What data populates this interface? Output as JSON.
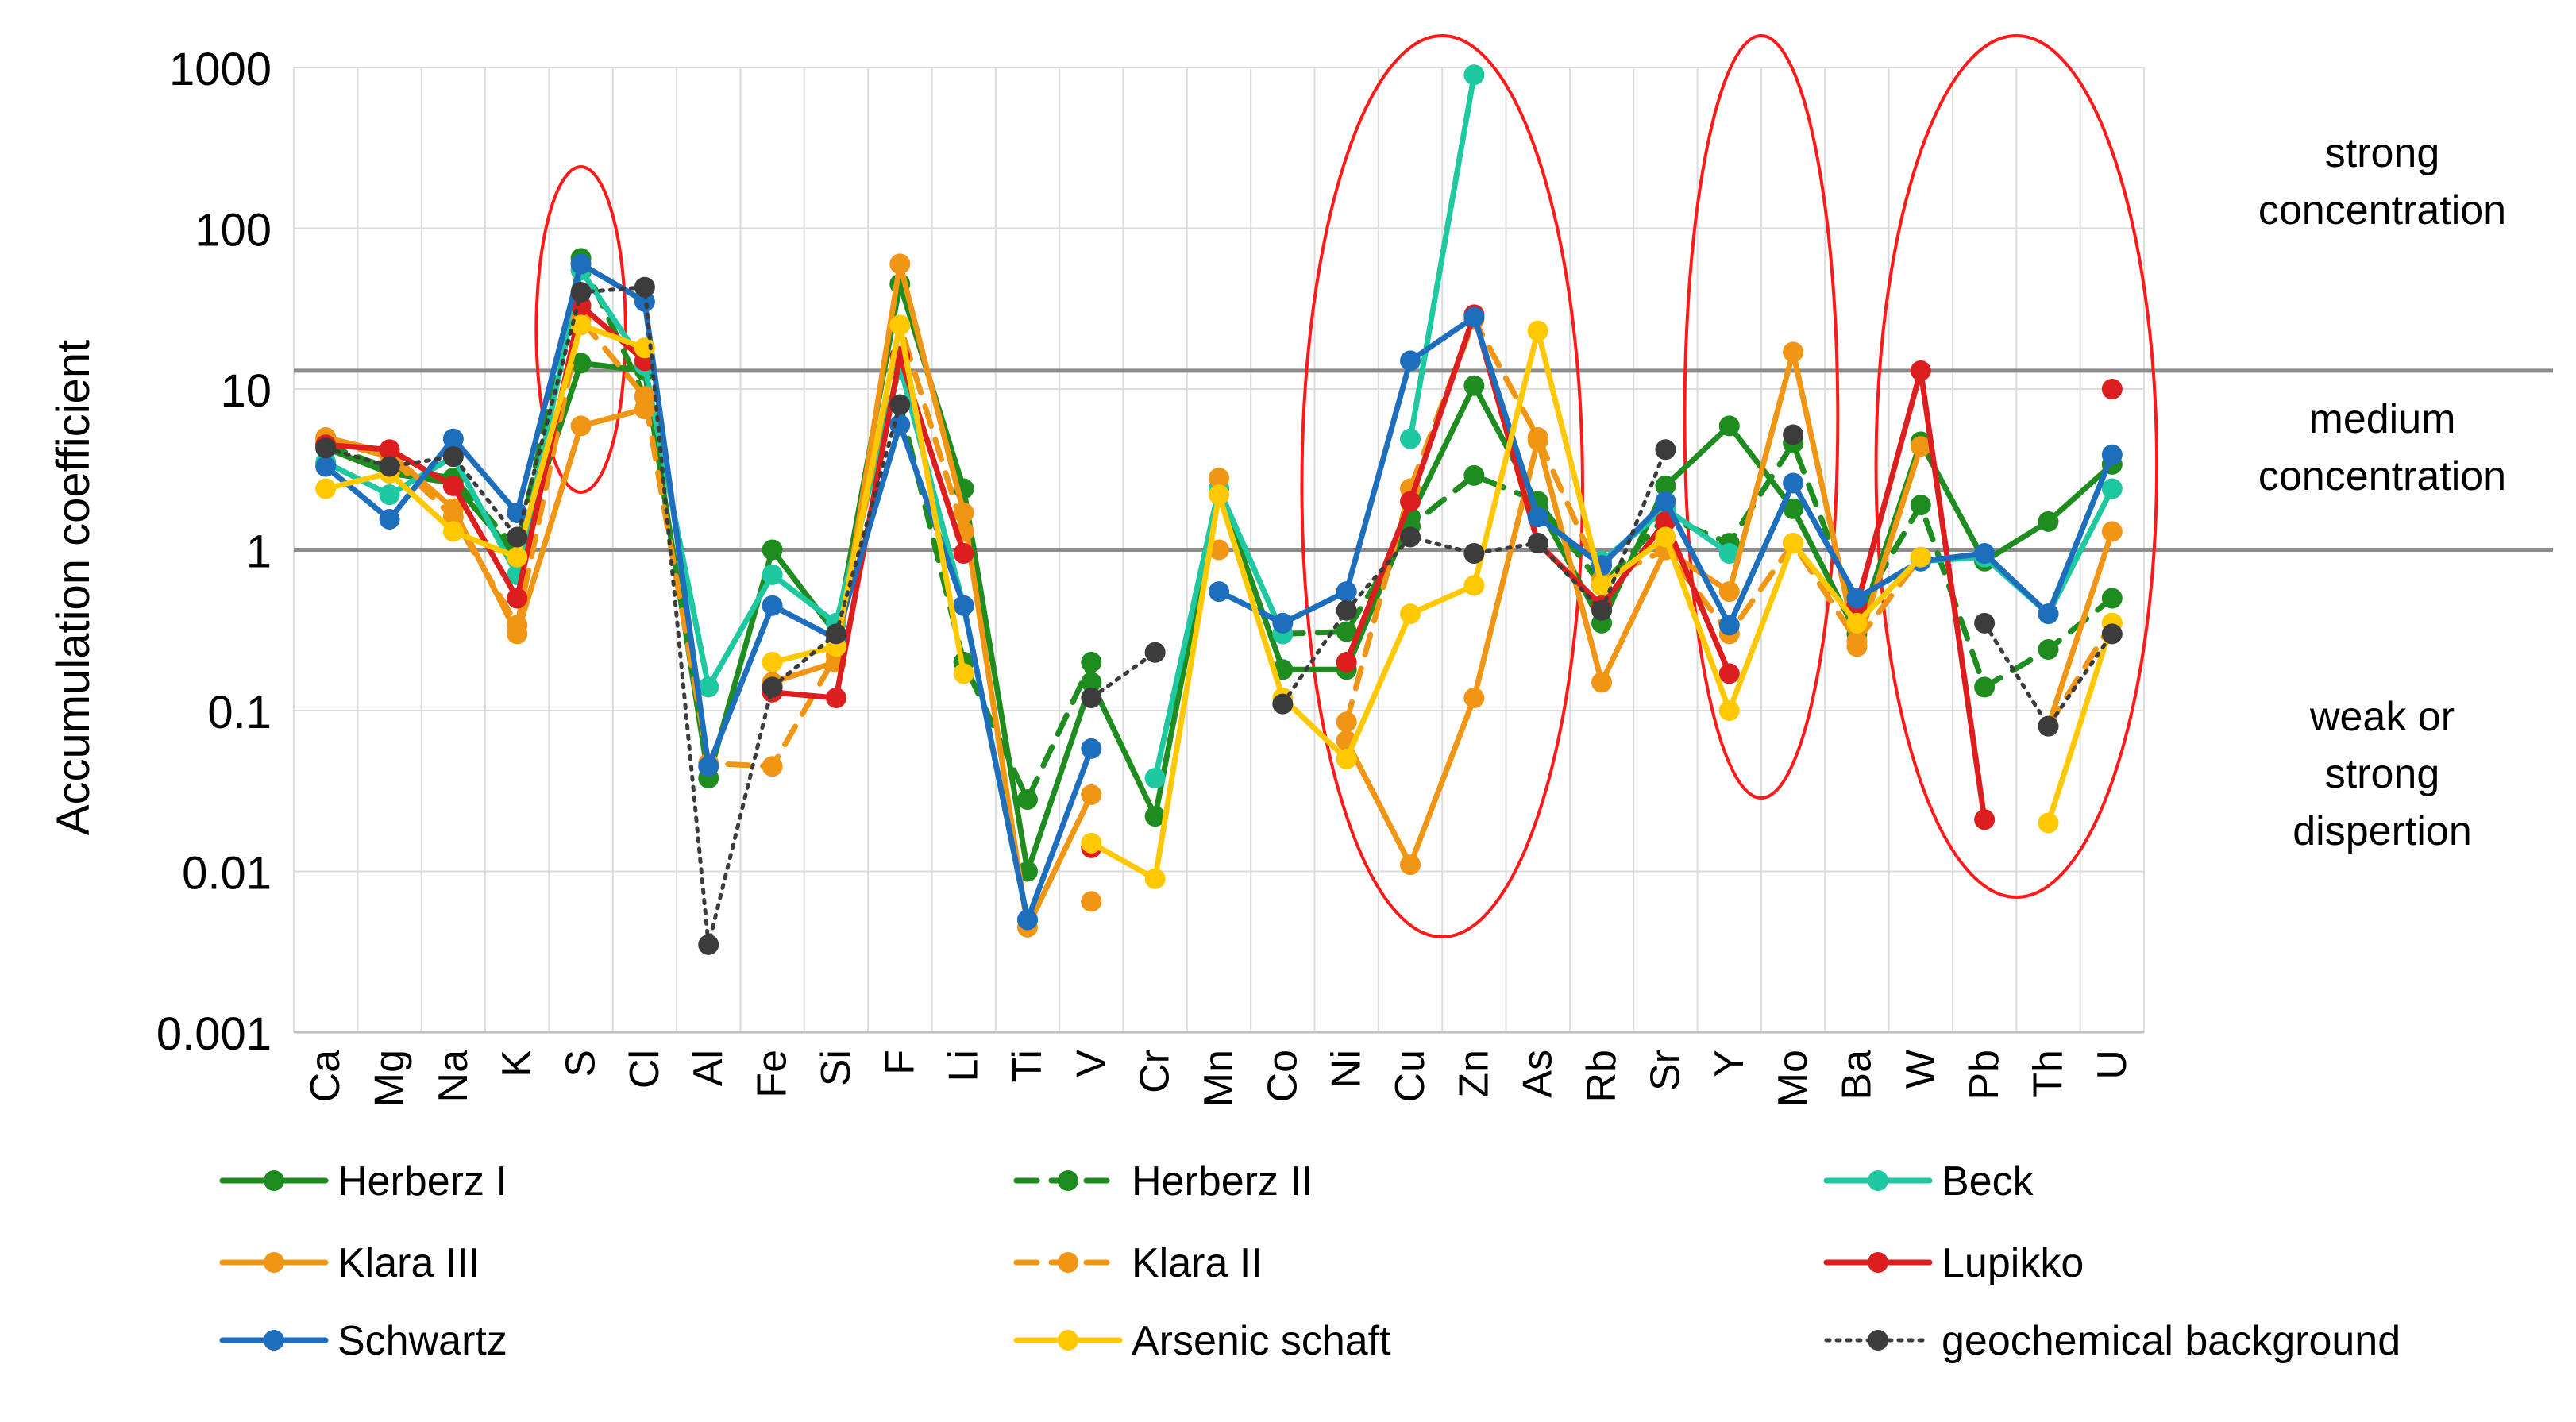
{
  "chart_data": {
    "type": "line",
    "yscale": "log",
    "ylabel": "Accumulation coefficient",
    "xlabel": "",
    "ylim": [
      0.001,
      1000
    ],
    "yticks": [
      {
        "value": 0.001,
        "label": "0.001"
      },
      {
        "value": 0.01,
        "label": "0.01"
      },
      {
        "value": 0.1,
        "label": "0.1"
      },
      {
        "value": 1,
        "label": "1"
      },
      {
        "value": 10,
        "label": "10"
      },
      {
        "value": 100,
        "label": "100"
      },
      {
        "value": 1000,
        "label": "1000"
      }
    ],
    "categories": [
      "Ca",
      "Mg",
      "Na",
      "K",
      "S",
      "Cl",
      "Al",
      "Fe",
      "Si",
      "F",
      "Li",
      "Ti",
      "V",
      "Cr",
      "Mn",
      "Co",
      "Ni",
      "Cu",
      "Zn",
      "As",
      "Rb",
      "Sr",
      "Y",
      "Mo",
      "Ba",
      "W",
      "Pb",
      "Th",
      "U"
    ],
    "thresholds": [
      1,
      13
    ],
    "zones": [
      {
        "label": "strong concentration",
        "lines": [
          "strong",
          "concentration"
        ]
      },
      {
        "label": "medium concentration",
        "lines": [
          "medium",
          "concentration"
        ]
      },
      {
        "label": "weak or strong dispertion",
        "lines": [
          "weak or",
          "strong",
          "dispertion"
        ]
      }
    ],
    "highlights": [
      {
        "from": "S",
        "to": "S"
      },
      {
        "from": "Ni",
        "to": "As"
      },
      {
        "from": "Y",
        "to": "Mo"
      },
      {
        "from": "W",
        "to": "U"
      }
    ],
    "series": [
      {
        "name": "Herberz I",
        "color": "#1e8c1e",
        "dash": "solid",
        "values": [
          4.3,
          3.0,
          2.6,
          0.9,
          14.5,
          13,
          0.038,
          1.0,
          0.3,
          45,
          2.4,
          0.01,
          0.15,
          0.022,
          2.4,
          0.18,
          0.18,
          1.6,
          10.5,
          1.9,
          0.35,
          2.5,
          5.9,
          1.8,
          0.3,
          4.7,
          0.85,
          1.5,
          3.4
        ]
      },
      {
        "name": "Herberz II",
        "color": "#1e8c1e",
        "dash": "dashed",
        "values": [
          4.5,
          3.2,
          2.8,
          1.0,
          65,
          9,
          null,
          null,
          null,
          8,
          0.2,
          0.028,
          0.2,
          null,
          null,
          0.3,
          0.31,
          1.4,
          2.9,
          2.0,
          0.6,
          1.6,
          1.1,
          4.6,
          0.4,
          1.9,
          0.14,
          0.24,
          0.5
        ]
      },
      {
        "name": "Beck",
        "color": "#1ec8a0",
        "dash": "solid",
        "values": [
          3.5,
          2.2,
          3.8,
          0.7,
          55,
          14,
          0.14,
          0.7,
          0.35,
          14,
          0.45,
          0.005,
          null,
          0.038,
          2.4,
          0.3,
          null,
          4.9,
          900,
          null,
          0.85,
          1.8,
          0.95,
          null,
          0.5,
          0.85,
          0.9,
          0.4,
          2.4
        ]
      },
      {
        "name": "Klara III",
        "color": "#f09614",
        "dash": "solid",
        "values": [
          5.0,
          4.0,
          1.8,
          0.3,
          5.9,
          7.5,
          null,
          0.15,
          0.2,
          60,
          1.7,
          0.0045,
          0.03,
          null,
          2.8,
          null,
          0.065,
          0.011,
          0.12,
          4.8,
          0.15,
          1.0,
          0.55,
          17,
          0.25,
          4.4,
          null,
          0.08,
          1.3
        ]
      },
      {
        "name": "Klara II",
        "color": "#f09614",
        "dash": "dashed",
        "values": [
          4.8,
          3.8,
          1.6,
          0.34,
          27,
          9,
          0.047,
          0.045,
          0.22,
          25,
          1.3,
          null,
          0.0065,
          null,
          1.0,
          null,
          0.085,
          2.4,
          27,
          5.0,
          0.65,
          1.0,
          0.3,
          1.1,
          0.27,
          0.9,
          null,
          0.08,
          0.35
        ]
      },
      {
        "name": "Lupikko",
        "color": "#dc1e1e",
        "dash": "solid",
        "values": [
          4.5,
          4.2,
          2.5,
          0.5,
          33,
          15,
          null,
          0.13,
          0.12,
          16,
          0.95,
          null,
          0.014,
          null,
          null,
          null,
          0.2,
          2.0,
          29,
          1.1,
          0.45,
          1.5,
          0.17,
          null,
          0.45,
          13,
          0.021,
          null,
          10
        ]
      },
      {
        "name": "Schwartz",
        "color": "#1e6ebe",
        "dash": "solid",
        "values": [
          3.3,
          1.55,
          4.9,
          1.7,
          60,
          35,
          0.045,
          0.45,
          0.28,
          6,
          0.45,
          0.005,
          0.058,
          null,
          0.55,
          0.35,
          0.55,
          15,
          28,
          1.6,
          0.8,
          2.0,
          0.34,
          2.6,
          0.5,
          0.85,
          0.95,
          0.4,
          3.9
        ]
      },
      {
        "name": "Arsenic schaft",
        "color": "#ffc800",
        "dash": "solid",
        "values": [
          2.4,
          3.0,
          1.3,
          0.9,
          25,
          18,
          null,
          0.2,
          0.25,
          25,
          0.17,
          null,
          0.015,
          0.009,
          2.2,
          0.12,
          0.05,
          0.4,
          0.6,
          23,
          0.6,
          1.2,
          0.1,
          1.1,
          0.35,
          0.9,
          null,
          0.02,
          0.35
        ]
      },
      {
        "name": "geochemical background",
        "color": "#3c3c3c",
        "dash": "dotted",
        "values": [
          4.3,
          3.3,
          3.8,
          1.2,
          40,
          43,
          0.0035,
          0.14,
          0.3,
          8,
          null,
          null,
          0.12,
          0.23,
          null,
          0.11,
          0.42,
          1.2,
          0.95,
          1.1,
          0.42,
          4.2,
          null,
          5.2,
          null,
          null,
          0.35,
          0.08,
          0.3
        ]
      }
    ]
  }
}
